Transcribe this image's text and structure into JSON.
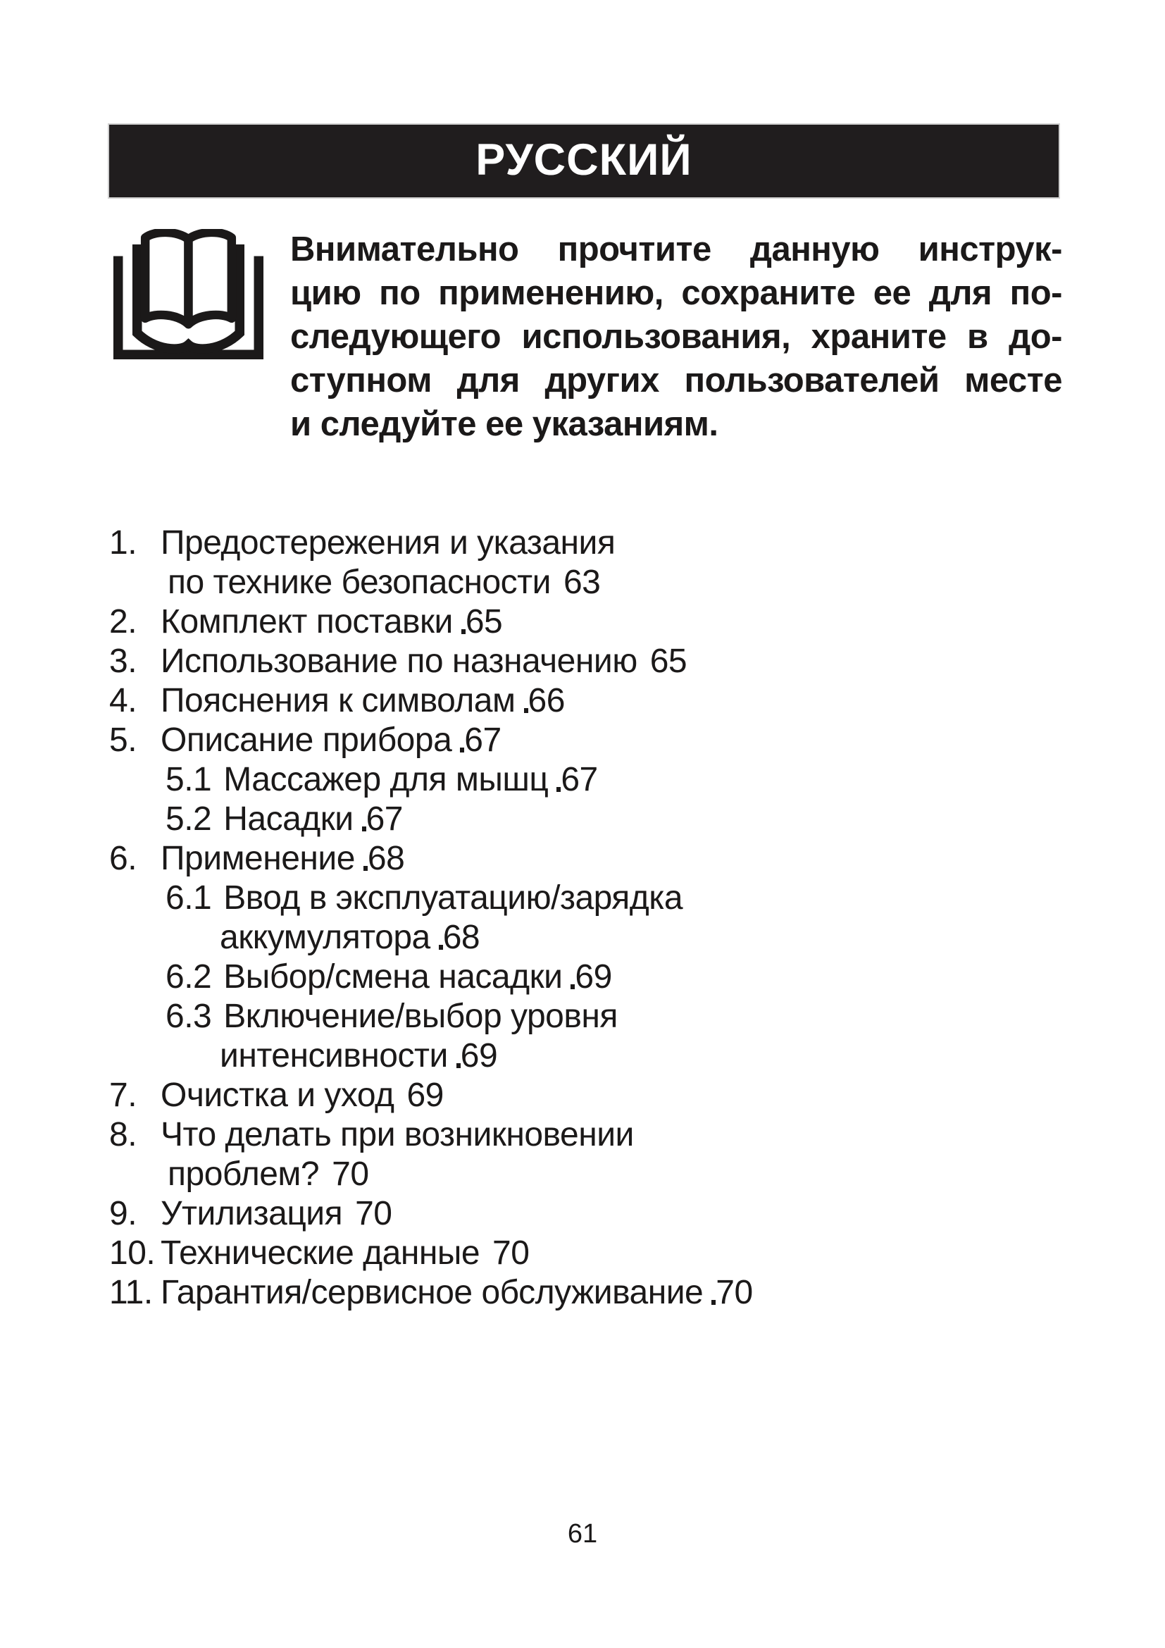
{
  "colors": {
    "ink": "#1b1919",
    "header_bg": "#201d1e",
    "header_fg": "#ffffff",
    "page_bg": "#ffffff"
  },
  "header": {
    "title": "РУССКИЙ"
  },
  "notice": {
    "icon": "open-book-icon",
    "lines": [
      "Внимательно прочтите данную инструк-",
      "цию по применению, сохраните ее для по-",
      "следующего использования, храните в до-",
      "ступном для других пользователей месте",
      "и следуйте ее указаниям."
    ]
  },
  "toc": {
    "lines": [
      {
        "label": "1.",
        "text": "Предостережения и указания",
        "level": "main"
      },
      {
        "text": "по технике безопасности",
        "page": "63",
        "level": "cont-main",
        "gap": true
      },
      {
        "label": "2.",
        "text": "Комплект поставки",
        "page": "65",
        "level": "main"
      },
      {
        "label": "3.",
        "text": "Использование по назначению",
        "page": "65",
        "level": "main",
        "gap": true
      },
      {
        "label": "4.",
        "text": "Пояснения к символам",
        "page": "66",
        "level": "main"
      },
      {
        "label": "5.",
        "text": "Описание прибора",
        "page": "67",
        "level": "main"
      },
      {
        "label": "5.1",
        "text": "Массажер для мышц",
        "page": "67",
        "level": "sub"
      },
      {
        "label": "5.2",
        "text": "Насадки",
        "page": "67",
        "level": "sub"
      },
      {
        "label": "6.",
        "text": "Применение",
        "page": "68",
        "level": "main"
      },
      {
        "label": "6.1",
        "text": "Ввод в эксплуатацию/зарядка",
        "level": "sub"
      },
      {
        "text": "аккумулятора",
        "page": "68",
        "level": "cont-sub"
      },
      {
        "label": "6.2",
        "text": "Выбор/смена насадки",
        "page": "69",
        "level": "sub"
      },
      {
        "label": "6.3",
        "text": "Включение/выбор уровня",
        "level": "sub"
      },
      {
        "text": "интенсивности",
        "page": "69",
        "level": "cont-sub"
      },
      {
        "label": "7.",
        "text": "Очистка и уход",
        "page": "69",
        "level": "main",
        "gap": true
      },
      {
        "label": "8.",
        "text": "Что делать при возникновении",
        "level": "main"
      },
      {
        "text": "проблем?",
        "page": "70",
        "level": "cont-main",
        "gap": true
      },
      {
        "label": "9.",
        "text": "Утилизация",
        "page": "70",
        "level": "main",
        "gap": true
      },
      {
        "label": "10.",
        "text": "Технические данные",
        "page": "70",
        "level": "main",
        "gap": true
      },
      {
        "label": "11.",
        "text": "Гарантия/сервисное обслуживание",
        "page": "70",
        "level": "main"
      }
    ]
  },
  "footer": {
    "page_number": "61"
  }
}
